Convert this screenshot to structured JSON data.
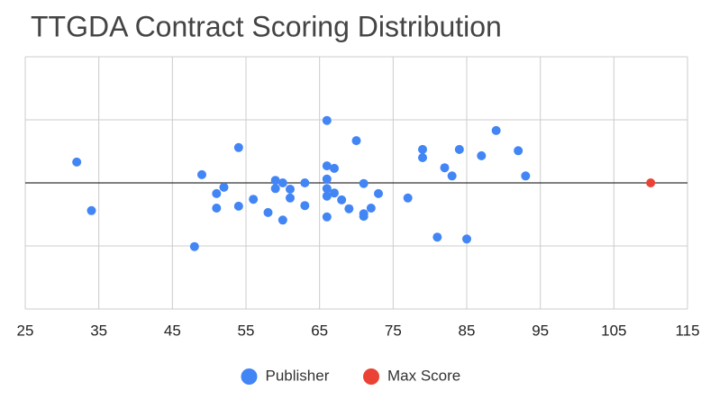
{
  "chart_data": {
    "type": "scatter",
    "title": "TTGDA Contract Scoring Distribution",
    "xlim": [
      25,
      115
    ],
    "xticks": [
      25,
      35,
      45,
      55,
      65,
      75,
      85,
      95,
      105,
      115
    ],
    "ylim": [
      -2,
      2
    ],
    "yticks": [
      -2,
      -1,
      0,
      1,
      2
    ],
    "ytick_labels": false,
    "grid": true,
    "legend": "bottom",
    "series": [
      {
        "name": "Publisher",
        "color": "#4285f4",
        "x": [
          32,
          34,
          48,
          49,
          51,
          51,
          52,
          54,
          54,
          56,
          58,
          59,
          59,
          60,
          60,
          61,
          61,
          63,
          63,
          66,
          66,
          66,
          66,
          66,
          66,
          67,
          67,
          68,
          69,
          70,
          71,
          71,
          71,
          72,
          73,
          77,
          79,
          79,
          81,
          82,
          83,
          84,
          85,
          87,
          89,
          92,
          93
        ],
        "values": [
          0.33,
          -0.44,
          -1.01,
          0.13,
          -0.17,
          -0.4,
          -0.07,
          0.56,
          -0.37,
          -0.26,
          -0.47,
          0.04,
          -0.09,
          0.0,
          -0.59,
          -0.1,
          -0.24,
          0.0,
          -0.36,
          0.99,
          0.27,
          0.06,
          -0.09,
          -0.21,
          -0.54,
          0.23,
          -0.16,
          -0.27,
          -0.41,
          0.67,
          -0.01,
          -0.49,
          -0.53,
          -0.4,
          -0.17,
          -0.24,
          0.53,
          0.4,
          -0.86,
          0.24,
          0.11,
          0.53,
          -0.89,
          0.43,
          0.83,
          0.51,
          0.11
        ]
      },
      {
        "name": "Max Score",
        "color": "#ea4335",
        "x": [
          110
        ],
        "values": [
          0
        ]
      }
    ]
  }
}
